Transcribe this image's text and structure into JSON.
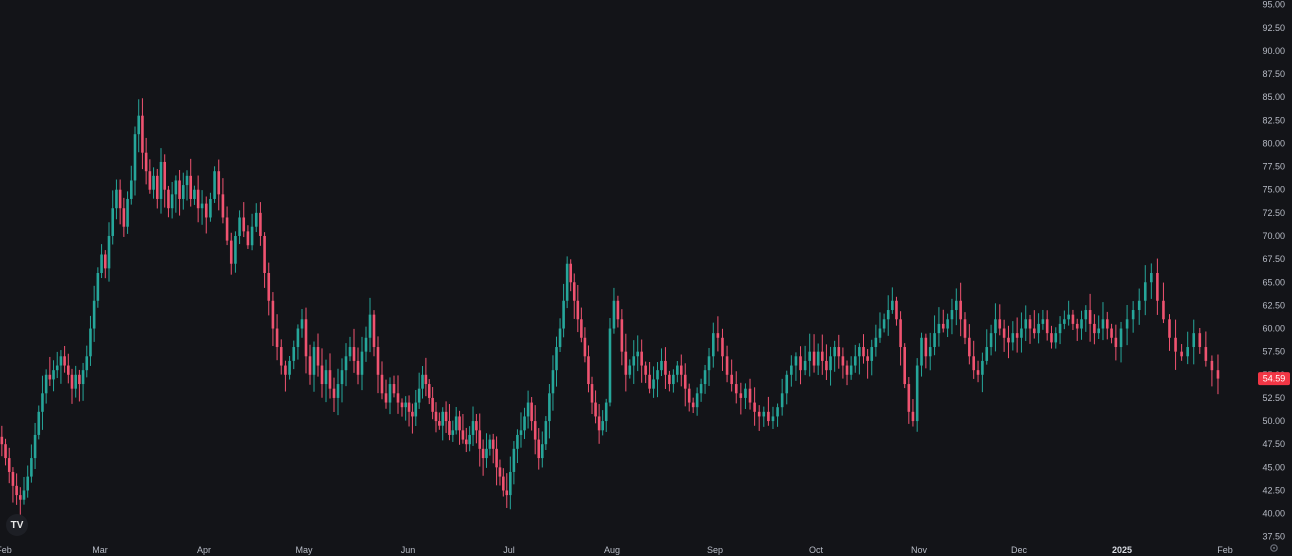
{
  "chart_data": {
    "type": "candlestick",
    "price_axis": {
      "ticks": [
        "37.50",
        "40.00",
        "42.50",
        "45.00",
        "47.50",
        "50.00",
        "52.50",
        "55.00",
        "57.50",
        "60.00",
        "62.50",
        "65.00",
        "67.50",
        "70.00",
        "72.50",
        "75.00",
        "77.50",
        "80.00",
        "82.50",
        "85.00",
        "87.50",
        "90.00",
        "92.50",
        "95.00"
      ],
      "range": [
        36.5,
        95.5
      ]
    },
    "time_axis": {
      "labels": [
        "Feb",
        "Mar",
        "Apr",
        "May",
        "Jun",
        "Jul",
        "Aug",
        "Sep",
        "Oct",
        "Nov",
        "Dec",
        "2025",
        "Feb"
      ],
      "year_label": "2025"
    },
    "last_price": "54.59",
    "colors": {
      "up": "#26a69a",
      "down": "#ef5370",
      "background": "#131418",
      "price_tag": "#f23645"
    },
    "series": [
      {
        "month": "Feb",
        "closes": [
          47.5,
          46.0,
          44.5,
          43.0,
          42.0,
          41.5,
          42.5,
          44.0,
          46.0,
          48.5,
          51.0,
          53.0,
          55.0,
          54.5,
          55.5,
          56.0,
          57.0,
          56.0,
          55.0,
          53.5,
          55.0,
          54.0,
          55.5,
          57.0,
          60.0,
          63.0
        ]
      },
      {
        "month": "Mar",
        "closes": [
          66.0,
          68.0,
          66.5,
          70.0,
          73.0,
          75.0,
          73.0,
          71.0,
          74.0,
          76.0,
          81.0,
          83.0,
          79.0,
          77.0,
          75.0,
          76.5,
          74.0,
          78.0,
          75.0,
          73.0,
          74.5,
          76.0,
          74.0,
          75.5,
          76.5,
          74.0,
          75.0,
          73.0
        ]
      },
      {
        "month": "Apr",
        "closes": [
          73.5,
          72.0,
          74.0,
          77.0,
          74.5,
          72.0,
          69.5,
          67.0,
          70.0,
          72.0,
          70.5,
          69.0,
          71.0,
          72.5,
          70.0,
          66.0,
          63.0,
          60.0,
          58.0,
          56.0,
          55.0,
          56.5,
          58.0,
          60.0
        ]
      },
      {
        "month": "May",
        "closes": [
          61.0,
          57.0,
          55.0,
          58.0,
          56.0,
          54.0,
          55.5,
          53.5,
          52.5,
          54.0,
          55.5,
          57.0,
          58.0,
          56.5,
          55.0,
          57.5,
          59.0,
          61.5,
          58.0,
          55.0,
          53.0,
          52.0,
          54.0,
          53.0,
          52.0,
          51.5
        ]
      },
      {
        "month": "Jun",
        "closes": [
          52.0,
          51.0,
          50.5,
          52.0,
          53.5,
          55.0,
          54.0,
          52.5,
          51.0,
          50.0,
          49.5,
          51.0,
          50.0,
          48.5,
          49.0,
          50.5,
          49.0,
          48.0,
          47.5,
          48.5,
          50.0,
          49.0,
          47.0,
          46.0,
          47.0,
          48.0,
          47.0,
          45.0,
          44.0,
          42.5
        ]
      },
      {
        "month": "Jul",
        "closes": [
          42.0,
          44.5,
          47.0,
          48.5,
          49.0,
          50.5,
          52.0,
          50.0,
          48.0,
          46.0,
          47.5,
          50.0,
          53.0,
          55.5,
          58.0,
          60.0,
          63.0,
          67.0,
          65.0,
          63.0,
          61.0,
          59.0,
          57.0,
          54.0,
          52.0,
          50.5,
          49.0,
          50.0,
          52.0
        ]
      },
      {
        "month": "Aug",
        "closes": [
          60.0,
          63.0,
          61.0,
          57.5,
          55.0,
          56.0,
          57.0,
          57.5,
          56.0,
          55.0,
          53.5,
          54.5,
          55.5,
          56.5,
          55.0,
          54.0,
          55.0,
          56.0,
          55.0,
          53.5,
          52.0,
          51.5,
          53.0,
          54.0,
          55.5,
          57.0
        ]
      },
      {
        "month": "Sep",
        "closes": [
          59.5,
          59.0,
          57.0,
          55.0,
          54.0,
          53.0,
          52.5,
          53.5,
          52.0,
          51.0,
          50.5,
          51.0,
          50.0,
          50.5,
          51.5,
          53.0,
          55.0,
          56.0,
          57.0,
          55.5,
          56.5,
          57.5
        ]
      },
      {
        "month": "Oct",
        "closes": [
          56.0,
          57.5,
          56.5,
          55.5,
          57.0,
          58.0,
          57.0,
          56.0,
          55.0,
          56.0,
          57.0,
          58.0,
          57.0,
          56.5,
          58.0,
          59.0,
          60.0,
          61.0,
          62.0,
          63.0,
          61.0,
          58.0,
          54.0,
          51.0,
          50.0
        ]
      },
      {
        "month": "Nov",
        "closes": [
          56.0,
          59.0,
          57.0,
          58.0,
          59.5,
          60.5,
          60.0,
          61.0,
          62.0,
          63.0,
          61.0,
          59.0,
          57.0,
          55.5,
          55.0,
          56.5,
          58.0,
          59.5,
          61.0,
          60.0,
          59.0,
          58.5,
          59.5
        ]
      },
      {
        "month": "Dec",
        "closes": [
          59.0,
          60.0,
          61.0,
          60.0,
          59.5,
          60.5,
          61.0,
          59.5,
          58.5,
          59.5,
          60.5,
          61.0,
          61.5,
          60.5,
          60.0,
          61.0,
          62.0,
          60.5,
          59.5,
          60.0,
          61.0,
          60.0,
          59.0,
          58.0
        ]
      },
      {
        "month": "2025",
        "closes": [
          60.0,
          61.0,
          62.0,
          63.0,
          65.0,
          66.0,
          63.0,
          61.0,
          59.0,
          57.5,
          57.0,
          58.0,
          59.5,
          58.0,
          56.5,
          55.5,
          54.59
        ]
      }
    ]
  }
}
